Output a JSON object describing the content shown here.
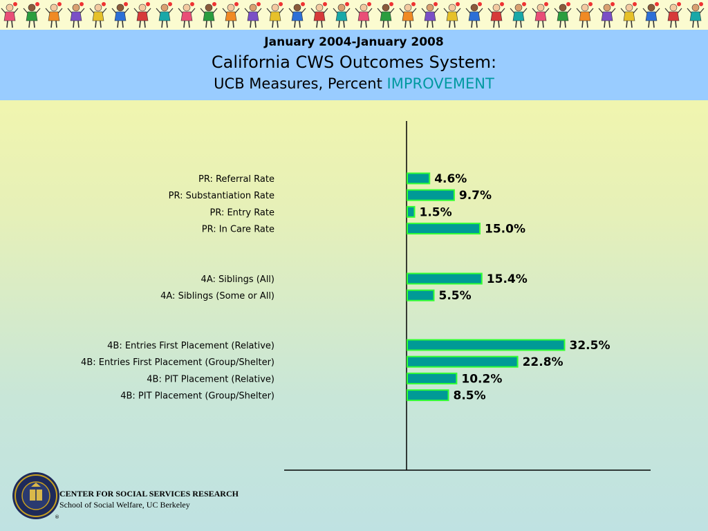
{
  "header": {
    "date_range": "January 2004-January 2008",
    "title": "California CWS Outcomes System:",
    "subtitle_prefix": "UCB Measures, Percent ",
    "subtitle_highlight": "IMPROVEMENT"
  },
  "chart_data": {
    "type": "bar",
    "orientation": "horizontal",
    "categories": [
      "PR: Referral Rate",
      "PR: Substantiation Rate",
      "PR: Entry Rate",
      "PR: In Care Rate",
      "4A: Siblings (All)",
      "4A: Siblings (Some or All)",
      "4B: Entries First Placement (Relative)",
      "4B: Entries First Placement (Group/Shelter)",
      "4B: PIT Placement (Relative)",
      "4B: PIT Placement (Group/Shelter)"
    ],
    "values": [
      4.6,
      9.7,
      1.5,
      15.0,
      15.4,
      5.5,
      32.5,
      22.8,
      10.2,
      8.5
    ],
    "value_labels": [
      "4.6%",
      "9.7%",
      "1.5%",
      "15.0%",
      "15.4%",
      "5.5%",
      "32.5%",
      "22.8%",
      "10.2%",
      "8.5%"
    ],
    "groups": [
      [
        0,
        1,
        2,
        3
      ],
      [
        4,
        5
      ],
      [
        6,
        7,
        8,
        9
      ]
    ],
    "xlim": [
      0,
      50
    ],
    "bar_color": "#009a96",
    "bar_border_color": "#33ff33",
    "axis_color": "#000000"
  },
  "footer": {
    "org": "CENTER FOR SOCIAL SERVICES RESEARCH",
    "school": "School of Social Welfare, UC Berkeley",
    "registered_mark": "®"
  },
  "logo_color": "#c8a020"
}
